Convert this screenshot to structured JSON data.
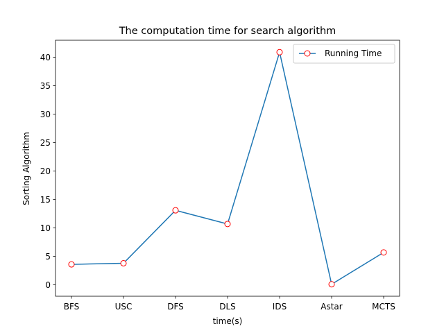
{
  "chart_data": {
    "type": "line",
    "title": "The computation time for search algorithm",
    "xlabel": "time(s)",
    "ylabel": "Sorting Algorithm",
    "categories": [
      "BFS",
      "USC",
      "DFS",
      "DLS",
      "IDS",
      "Astar",
      "MCTS"
    ],
    "series": [
      {
        "name": "Running Time",
        "values": [
          3.6,
          3.8,
          13.1,
          10.7,
          40.9,
          0.1,
          5.7
        ],
        "line_color": "#1f77b4",
        "marker_edge_color": "#ff0000",
        "marker_face_color": "#ffffff"
      }
    ],
    "ylim": [
      -2.0,
      43.0
    ],
    "yticks": [
      0,
      5,
      10,
      15,
      20,
      25,
      30,
      35,
      40
    ],
    "grid": false,
    "legend_position": "top-right"
  }
}
